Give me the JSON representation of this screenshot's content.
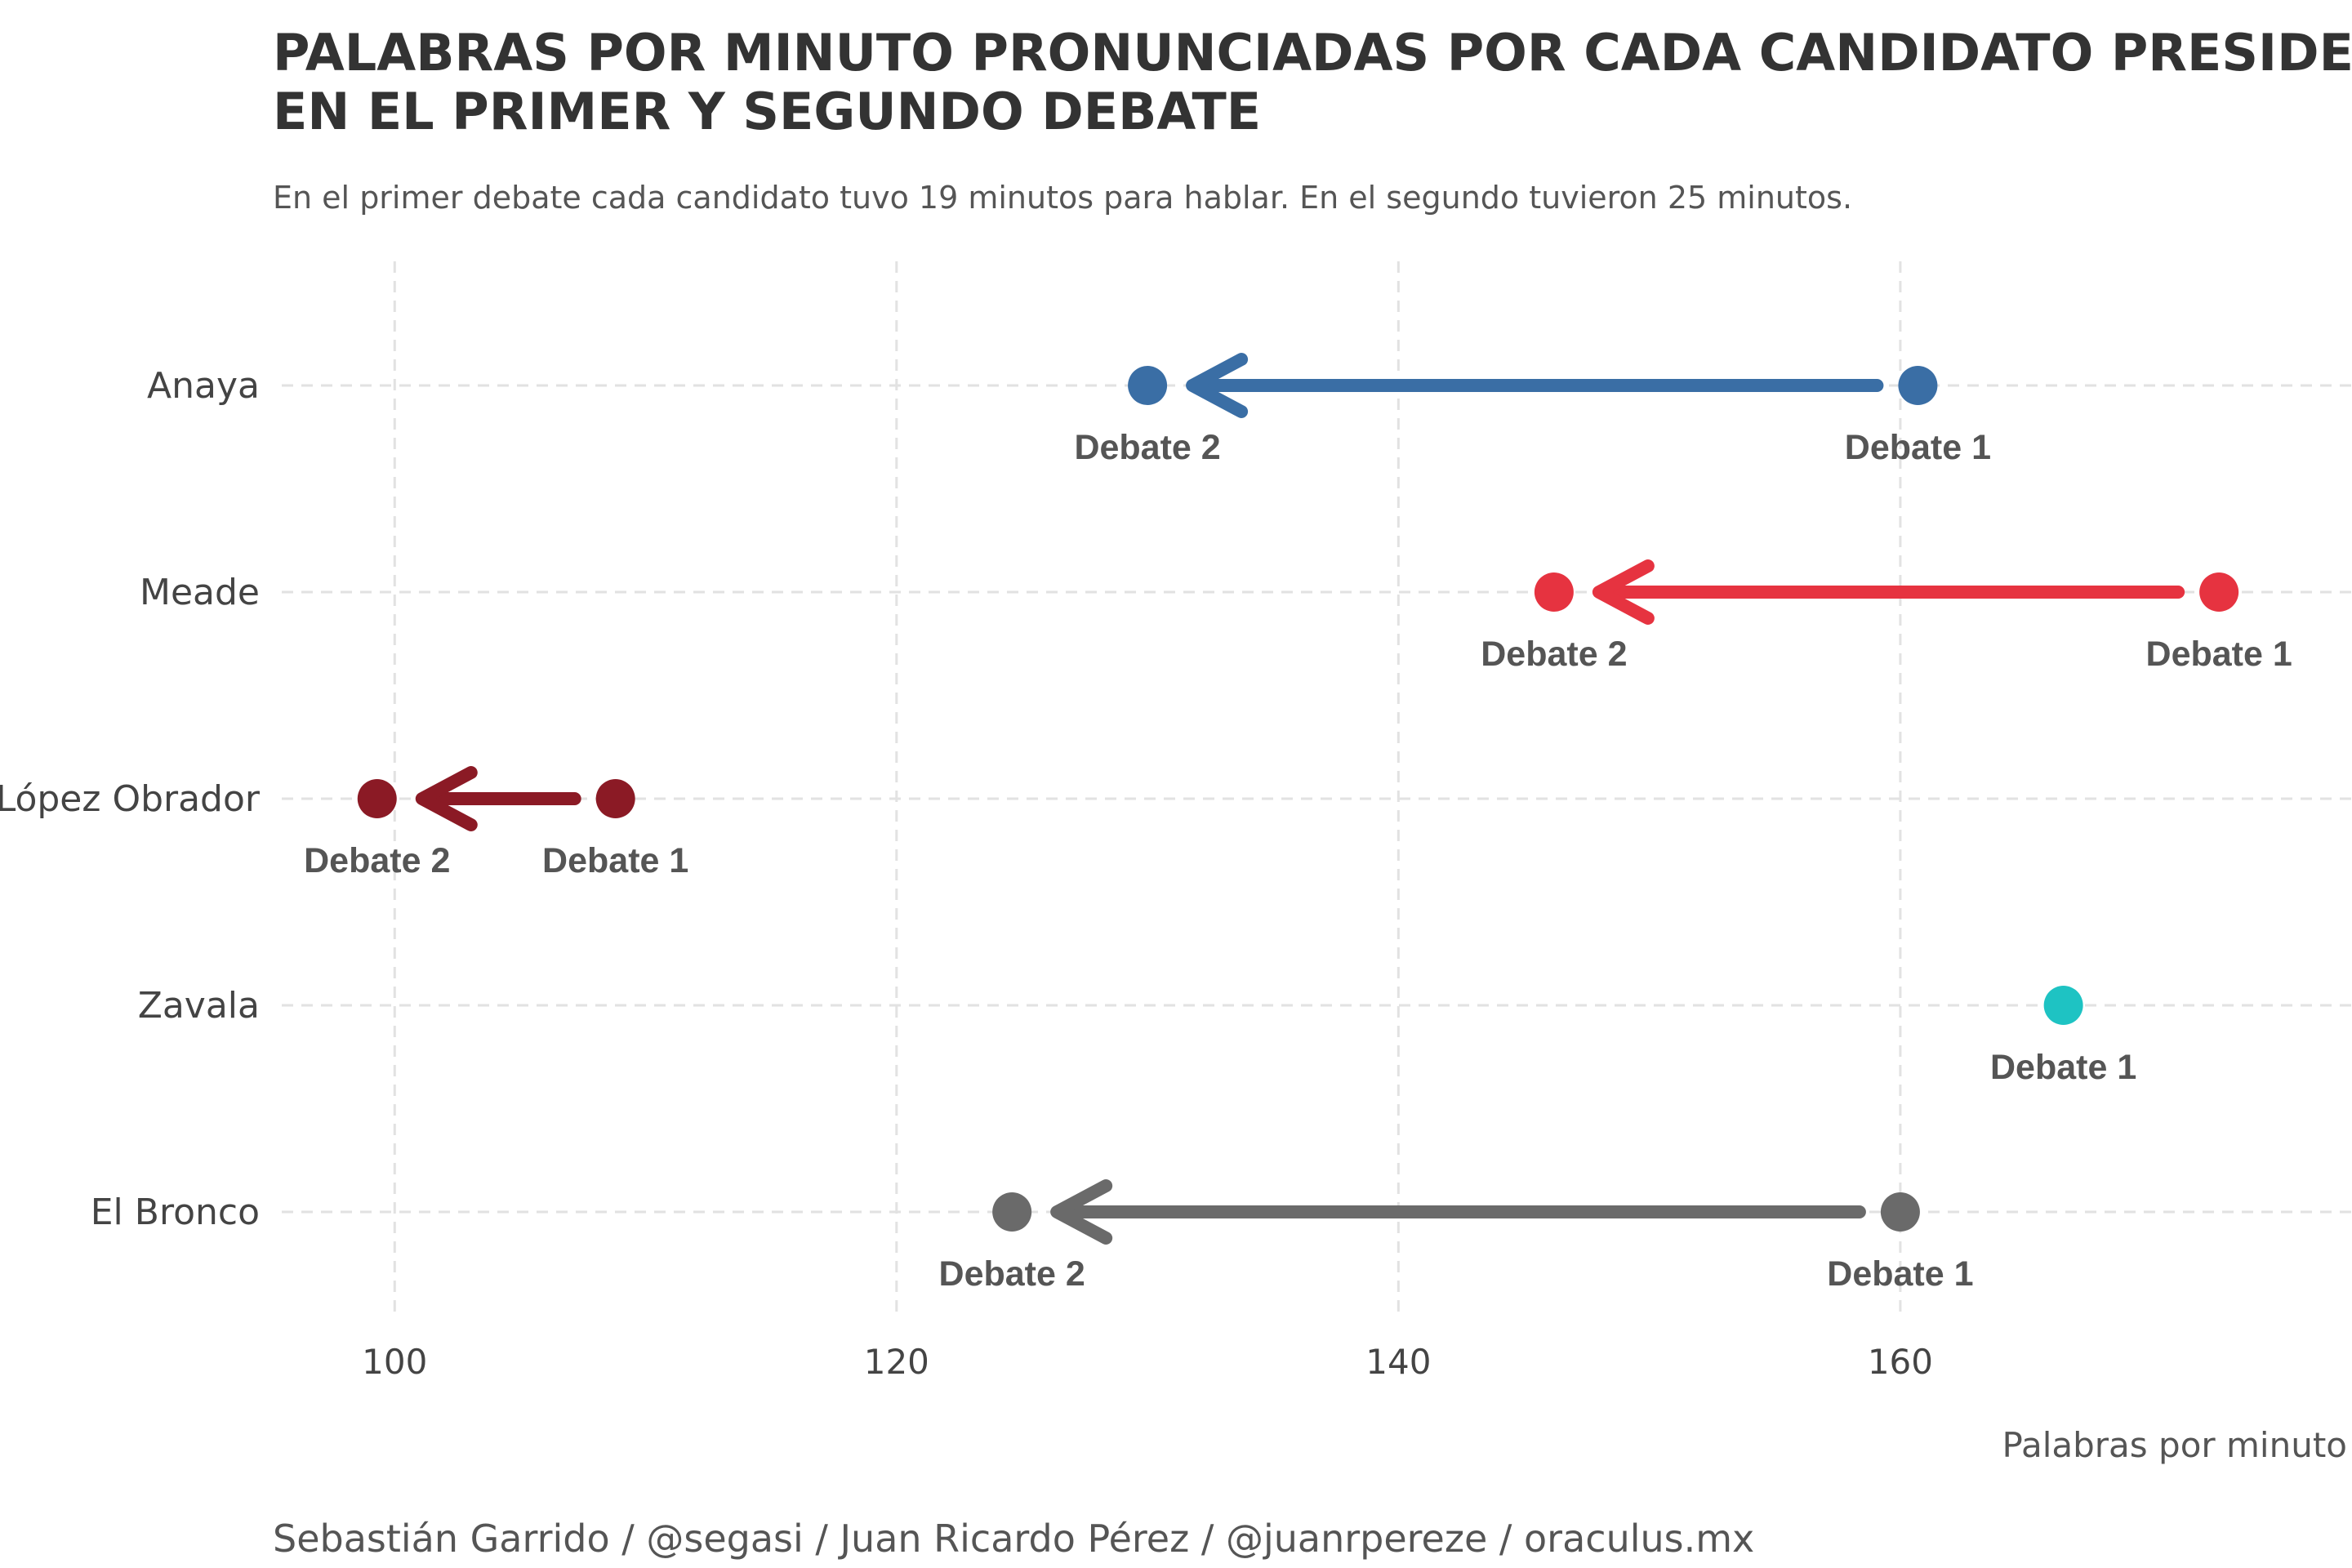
{
  "chart_data": {
    "type": "dumbbell-arrow",
    "title_line1": "PALABRAS POR MINUTO PRONUNCIADAS POR CADA CANDIDATO PRESIDENCIAL",
    "title_line2": "EN EL PRIMER Y SEGUNDO DEBATE",
    "subtitle": "En el primer debate cada candidato tuvo 19 minutos para hablar. En el segundo tuvieron 25 minutos.",
    "xlabel": "Palabras por minuto",
    "caption": "Sebastián Garrido / @segasi / Juan Ricardo Pérez / @juanrpereze / oraculus.mx",
    "x_ticks": [
      100,
      120,
      140,
      160
    ],
    "xlim": [
      95.5,
      178
    ],
    "grid": true,
    "point_labels": {
      "debate1": "Debate 1",
      "debate2": "Debate 2"
    },
    "series": [
      {
        "candidate": "Anaya",
        "color": "#3a6ea5",
        "debate1": 160.7,
        "debate2": 130.0
      },
      {
        "candidate": "Meade",
        "color": "#e63340",
        "debate1": 172.7,
        "debate2": 146.2
      },
      {
        "candidate": "López Obrador",
        "color": "#8b1a25",
        "debate1": 108.8,
        "debate2": 99.3
      },
      {
        "candidate": "Zavala",
        "color": "#1ec3c3",
        "debate1": 166.5,
        "debate2": null
      },
      {
        "candidate": "El Bronco",
        "color": "#6a6a6a",
        "debate1": 160.0,
        "debate2": 124.6
      }
    ]
  }
}
